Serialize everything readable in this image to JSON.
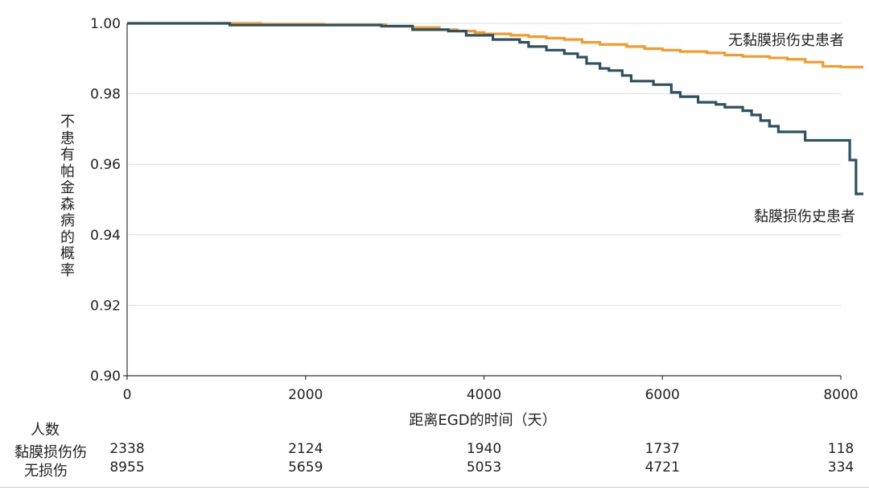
{
  "chart_data": {
    "type": "line",
    "step": true,
    "ylabel": "不患有帕金森病的概率",
    "xlabel": "距离EGD的时间（天）",
    "xlim": [
      0,
      8200
    ],
    "ylim": [
      0.9,
      1.0
    ],
    "xticks": [
      0,
      2000,
      4000,
      6000,
      8000
    ],
    "yticks": [
      "0.90",
      "0.92",
      "0.94",
      "0.96",
      "0.98",
      "1.00"
    ],
    "grid": "horizontal",
    "series": [
      {
        "name": "无黏膜损伤史患者",
        "color": "#f29b2e",
        "points": [
          [
            0,
            1.0
          ],
          [
            1400,
            1.0
          ],
          [
            1500,
            0.9998
          ],
          [
            2100,
            0.9998
          ],
          [
            2200,
            0.9996
          ],
          [
            2800,
            0.9996
          ],
          [
            2900,
            0.9992
          ],
          [
            3200,
            0.9988
          ],
          [
            3500,
            0.9982
          ],
          [
            3700,
            0.9978
          ],
          [
            3900,
            0.9974
          ],
          [
            4000,
            0.997
          ],
          [
            4300,
            0.9966
          ],
          [
            4500,
            0.9962
          ],
          [
            4700,
            0.9958
          ],
          [
            4900,
            0.9954
          ],
          [
            5100,
            0.9946
          ],
          [
            5300,
            0.994
          ],
          [
            5600,
            0.9934
          ],
          [
            5800,
            0.9928
          ],
          [
            6000,
            0.9924
          ],
          [
            6200,
            0.992
          ],
          [
            6500,
            0.9916
          ],
          [
            6700,
            0.991
          ],
          [
            6900,
            0.9906
          ],
          [
            7200,
            0.9902
          ],
          [
            7400,
            0.9898
          ],
          [
            7600,
            0.989
          ],
          [
            7800,
            0.9878
          ],
          [
            8000,
            0.9876
          ],
          [
            8200,
            0.9876
          ]
        ]
      },
      {
        "name": "黏膜损伤史患者",
        "color": "#2d515f",
        "points": [
          [
            0,
            1.0
          ],
          [
            1100,
            1.0
          ],
          [
            1150,
            0.9995
          ],
          [
            2800,
            0.9995
          ],
          [
            2850,
            0.9992
          ],
          [
            3200,
            0.9982
          ],
          [
            3600,
            0.9978
          ],
          [
            3800,
            0.9966
          ],
          [
            4100,
            0.9954
          ],
          [
            4400,
            0.9946
          ],
          [
            4500,
            0.9934
          ],
          [
            4700,
            0.9924
          ],
          [
            4900,
            0.9914
          ],
          [
            5050,
            0.9904
          ],
          [
            5150,
            0.9886
          ],
          [
            5300,
            0.9872
          ],
          [
            5400,
            0.9866
          ],
          [
            5550,
            0.9852
          ],
          [
            5650,
            0.9836
          ],
          [
            5900,
            0.9826
          ],
          [
            6100,
            0.9804
          ],
          [
            6200,
            0.9792
          ],
          [
            6400,
            0.9776
          ],
          [
            6600,
            0.977
          ],
          [
            6700,
            0.9762
          ],
          [
            6900,
            0.9752
          ],
          [
            7000,
            0.974
          ],
          [
            7100,
            0.9724
          ],
          [
            7200,
            0.9708
          ],
          [
            7300,
            0.9692
          ],
          [
            7600,
            0.9668
          ],
          [
            8100,
            0.9612
          ],
          [
            8170,
            0.9516
          ],
          [
            8200,
            0.9516
          ]
        ]
      }
    ],
    "annotations": [
      "无黏膜损伤史患者",
      "黏膜损伤史患者"
    ]
  },
  "risk_table": {
    "title": "人数",
    "rows": [
      {
        "label": "黏膜损伤伤",
        "values": [
          "2338",
          "2124",
          "1940",
          "1737",
          "118"
        ]
      },
      {
        "label": "无损伤",
        "values": [
          "8955",
          "5659",
          "5053",
          "4721",
          "334"
        ]
      }
    ],
    "xpositions": [
      0,
      2000,
      4000,
      6000,
      8000
    ]
  }
}
